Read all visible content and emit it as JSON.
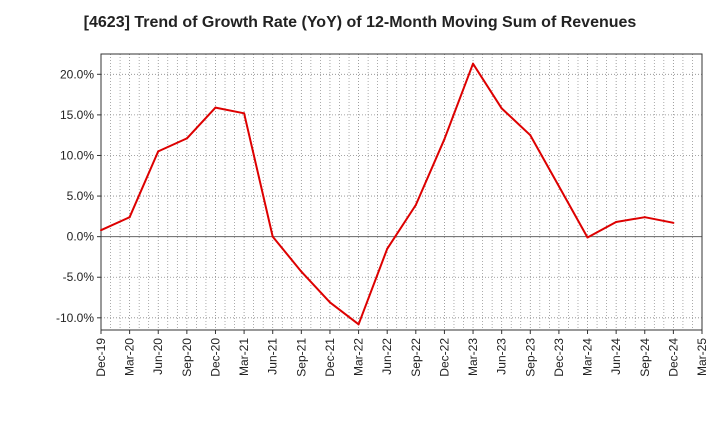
{
  "chart_data": {
    "type": "line",
    "title": "[4623]  Trend of Growth Rate (YoY) of 12-Month Moving Sum of Revenues",
    "xlabel": "",
    "ylabel": "",
    "x_tick_labels": [
      "Dec-19",
      "Mar-20",
      "Jun-20",
      "Sep-20",
      "Dec-20",
      "Mar-21",
      "Jun-21",
      "Sep-21",
      "Dec-21",
      "Mar-22",
      "Jun-22",
      "Sep-22",
      "Dec-22",
      "Mar-23",
      "Jun-23",
      "Sep-23",
      "Dec-23",
      "Mar-24",
      "Jun-24",
      "Sep-24",
      "Dec-24",
      "Mar-25"
    ],
    "y_ticks": [
      -10,
      -5,
      0,
      5,
      10,
      15,
      20
    ],
    "y_tick_labels": [
      "-10.0%",
      "-5.0%",
      "0.0%",
      "5.0%",
      "10.0%",
      "15.0%",
      "20.0%"
    ],
    "ylim": [
      -11.5,
      22.5
    ],
    "grid": true,
    "series": [
      {
        "color": "#dd0000",
        "x": [
          "Dec-19",
          "Mar-20",
          "Jun-20",
          "Sep-20",
          "Dec-20",
          "Mar-21",
          "Jun-21",
          "Sep-21",
          "Dec-21",
          "Mar-22",
          "Jun-22",
          "Sep-22",
          "Dec-22",
          "Mar-23",
          "Jun-23",
          "Sep-23",
          "Dec-23",
          "Mar-24",
          "Jun-24",
          "Sep-24",
          "Dec-24"
        ],
        "values": [
          0.8,
          2.4,
          10.5,
          12.1,
          15.9,
          15.2,
          0.0,
          -4.3,
          -8.1,
          -10.8,
          -1.5,
          3.9,
          12.0,
          21.3,
          15.8,
          12.5,
          6.2,
          -0.1,
          1.8,
          2.4,
          1.7
        ]
      }
    ],
    "zero_line_color": "#666666",
    "grid_color": "#888888"
  }
}
